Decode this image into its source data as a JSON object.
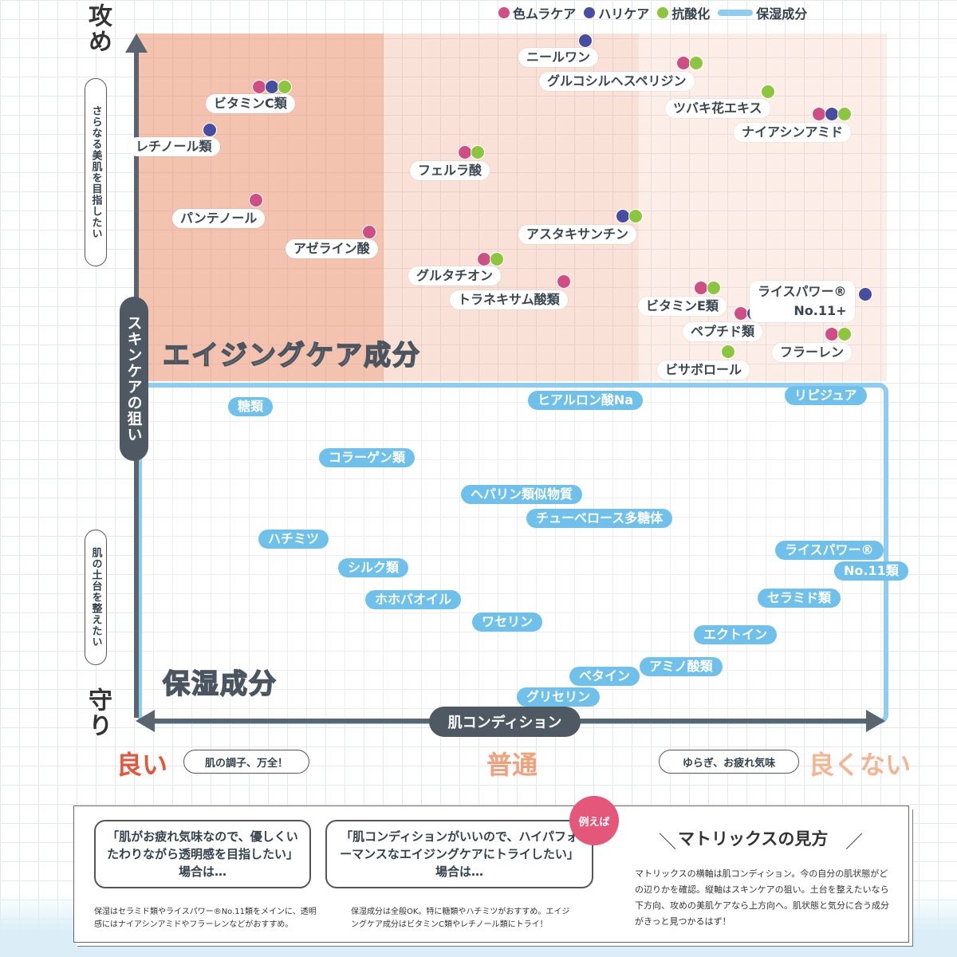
{
  "legend": {
    "items": [
      {
        "label": "色ムラケア",
        "color": "#cf4f84"
      },
      {
        "label": "ハリケア",
        "color": "#474d9f"
      },
      {
        "label": "抗酸化",
        "color": "#8cc63f"
      },
      {
        "label": "保湿成分",
        "color": "#8fcdf0"
      }
    ]
  },
  "axes": {
    "y_title": "スキンケアの狙い",
    "y_top": "攻め",
    "y_top_note": "さらなる美肌を目指したい",
    "y_bottom": "守り",
    "y_bottom_note": "肌の土台を整えたい",
    "x_title": "肌コンディション",
    "x_left": "良い",
    "x_left_note": "肌の調子、万全！",
    "x_mid": "普通",
    "x_right": "良くない",
    "x_right_note": "ゆらぎ、お疲れ気味"
  },
  "zones": {
    "aging": "エイジングケア成分",
    "moist": "保湿成分"
  },
  "aging_items": [
    {
      "label": "ビタミンC類",
      "tags": [
        "pink",
        "navy",
        "green"
      ]
    },
    {
      "label": "レチノール類",
      "tags": [
        "navy"
      ]
    },
    {
      "label": "パンテノール",
      "tags": [
        "pink"
      ]
    },
    {
      "label": "アゼライン酸",
      "tags": [
        "pink"
      ]
    },
    {
      "label": "ニールワン",
      "tags": [
        "navy"
      ]
    },
    {
      "label": "グルコシルヘスペリジン",
      "tags": [
        "pink",
        "green"
      ]
    },
    {
      "label": "フェルラ酸",
      "tags": [
        "pink",
        "green"
      ]
    },
    {
      "label": "ツバキ花エキス",
      "tags": [
        "green"
      ]
    },
    {
      "label": "ナイアシンアミド",
      "tags": [
        "pink",
        "navy",
        "green"
      ]
    },
    {
      "label": "アスタキサンチン",
      "tags": [
        "navy",
        "green"
      ]
    },
    {
      "label": "グルタチオン",
      "tags": [
        "pink",
        "green"
      ]
    },
    {
      "label": "トラネキサム酸類",
      "tags": [
        "pink"
      ]
    },
    {
      "label": "ビタミンE類",
      "tags": [
        "pink",
        "green"
      ]
    },
    {
      "label": "ペプチド類",
      "tags": [
        "pink",
        "navy"
      ]
    },
    {
      "label": "ビサボロール",
      "tags": [
        "green"
      ]
    },
    {
      "label": "フラーレン",
      "tags": [
        "pink",
        "green"
      ]
    },
    {
      "label": "ライスパワー® No.11+",
      "tags": [
        "navy"
      ]
    }
  ],
  "moist_items": [
    "糖類",
    "ヒアルロン酸Na",
    "リピジュア",
    "コラーゲン類",
    "ヘパリン類似物質",
    "チューベロース多糖体",
    "ハチミツ",
    "ライスパワー®",
    "No.11類",
    "シルク類",
    "ホホバオイル",
    "セラミド類",
    "ワセリン",
    "エクトイン",
    "アミノ酸類",
    "ベタイン",
    "グリセリン"
  ],
  "howto": {
    "example_badge": "例えば",
    "bubble1": "「肌がお疲れ気味なので、優しくいたわりながら透明感を目指したい」場合は…",
    "bubble1_answer": "保湿はセラミド類やライスパワー®No.11類をメインに、透明感にはナイアシンアミドやフラーレンなどがおすすめ。",
    "bubble2": "「肌コンディションがいいので、ハイパフォーマンスなエイジングケアにトライしたい」場合は…",
    "bubble2_answer": "保湿成分は全般OK。特に糖類やハチミツがおすすめ。エイジングケア成分はビタミンC類やレチノール類にトライ！",
    "title": "マトリックスの見方",
    "body": "マトリックスの横軸は肌コンディション。今の自分の肌状態がどの辺りかを確認。縦軸はスキンケアの狙い。土台を整えたいなら下方向、攻めの美肌ケアなら上方向へ。肌状態と気分に合う成分がきっと見つかるはず！"
  }
}
